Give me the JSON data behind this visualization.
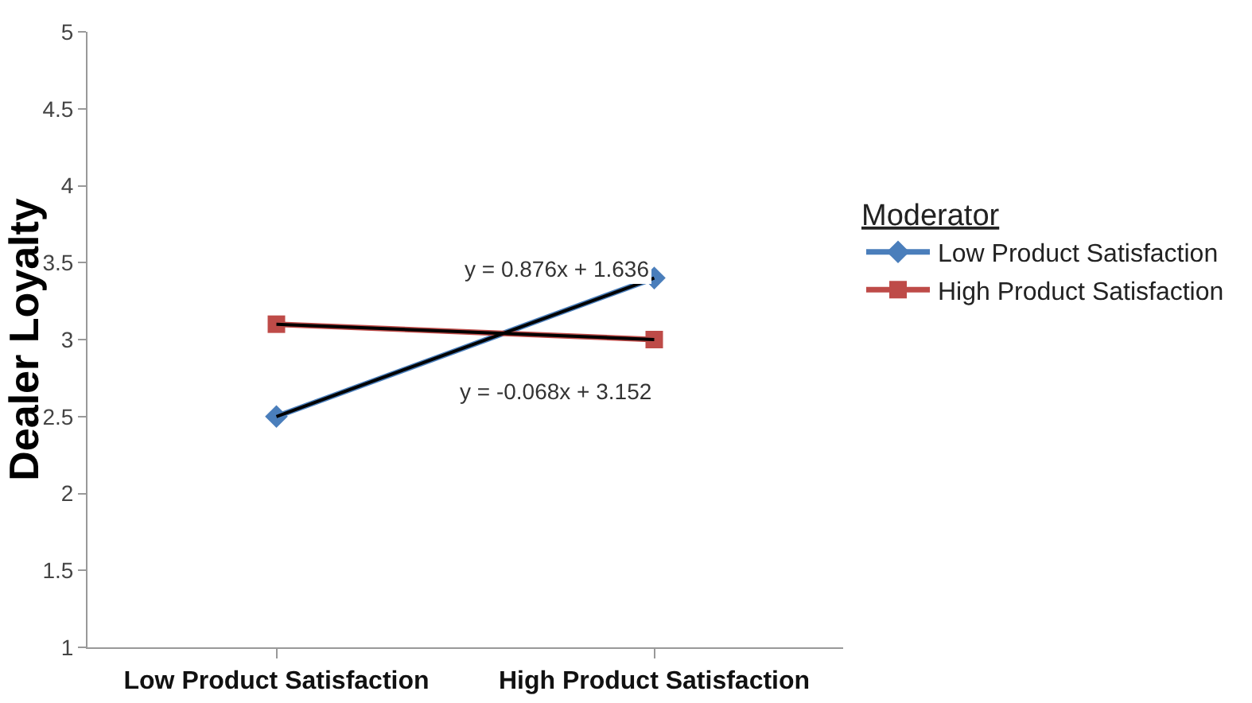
{
  "chart_data": {
    "type": "line",
    "ylabel": "Dealer Loyalty",
    "legend_title": "Moderator",
    "categories": [
      "Low Product Satisfaction",
      "High Product Satisfaction"
    ],
    "series": [
      {
        "name": "Low Product Satisfaction",
        "color": "#4a7ebb",
        "values": [
          2.5,
          3.4
        ],
        "marker": "diamond"
      },
      {
        "name": "High Product Satisfaction",
        "color": "#be4b48",
        "values": [
          3.1,
          3.0
        ],
        "marker": "square"
      },
      {
        "type": "line",
        "color": "#000000",
        "values": [
          2.5,
          3.4
        ],
        "marker": "none"
      },
      {
        "type": "line",
        "color": "#000000",
        "values": [
          3.1,
          3.0
        ],
        "marker": "none"
      }
    ],
    "annotations": [
      "y = 0.876x + 1.636",
      "y = -0.068x + 3.152"
    ],
    "ylim": [
      1,
      5
    ],
    "yticks": [
      1,
      1.5,
      2,
      2.5,
      3,
      3.5,
      4,
      4.5,
      5
    ],
    "grid": false,
    "legend": "right"
  }
}
